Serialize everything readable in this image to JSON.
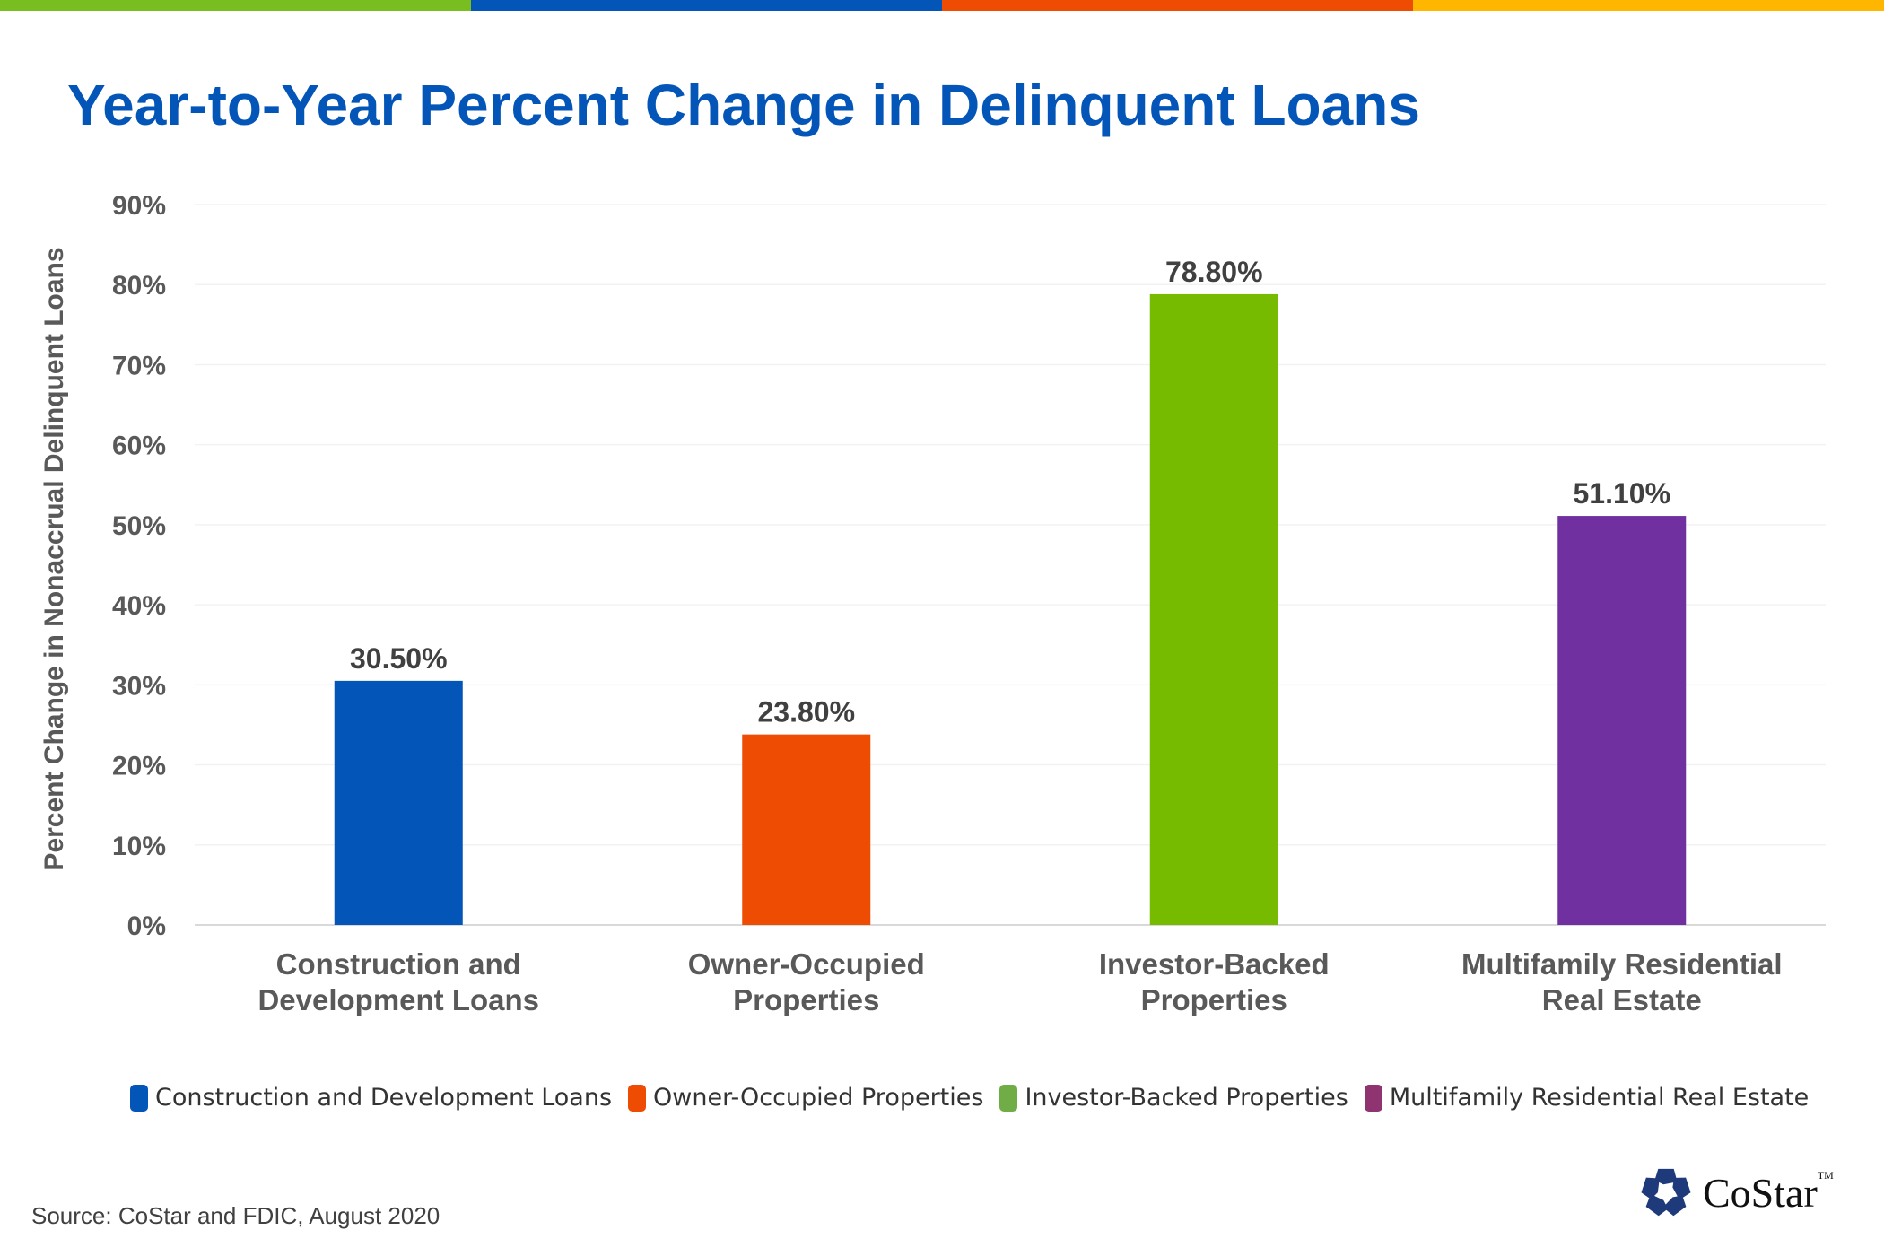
{
  "stripe_colors": [
    "#78be20",
    "#0455b8",
    "#ee4b03",
    "#ffb600"
  ],
  "chart_data": {
    "type": "bar",
    "title": "Year-to-Year Percent Change in Delinquent Loans",
    "ylabel": "Percent Change in Nonaccrual Delinquent Loans",
    "xlabel": "",
    "categories": [
      [
        "Construction and",
        "Development Loans"
      ],
      [
        "Owner-Occupied",
        "Properties"
      ],
      [
        "Investor-Backed",
        "Properties"
      ],
      [
        "Multifamily Residential",
        "Real Estate"
      ]
    ],
    "values": [
      30.5,
      23.8,
      78.8,
      51.1
    ],
    "data_labels": [
      "30.50%",
      "23.80%",
      "78.80%",
      "51.10%"
    ],
    "bar_colors": [
      "#0455b8",
      "#ee4b03",
      "#77bb00",
      "#7030a0"
    ],
    "ylim": [
      0,
      90
    ],
    "yticks": [
      "0%",
      "10%",
      "20%",
      "30%",
      "40%",
      "50%",
      "60%",
      "70%",
      "80%",
      "90%"
    ],
    "grid": true,
    "legend": {
      "placement": "bottom",
      "entries": [
        {
          "label": "Construction and Development Loans",
          "color": "#0455b8"
        },
        {
          "label": "Owner-Occupied Properties",
          "color": "#ee4b03"
        },
        {
          "label": "Investor-Backed Properties",
          "color": "#70ad47"
        },
        {
          "label": "Multifamily Residential Real Estate",
          "color": "#8f3470"
        }
      ]
    }
  },
  "source": "Source: CoStar and FDIC, August 2020",
  "logo": {
    "text": "CoStar",
    "tm": "TM",
    "color": "#1f3a7a"
  }
}
